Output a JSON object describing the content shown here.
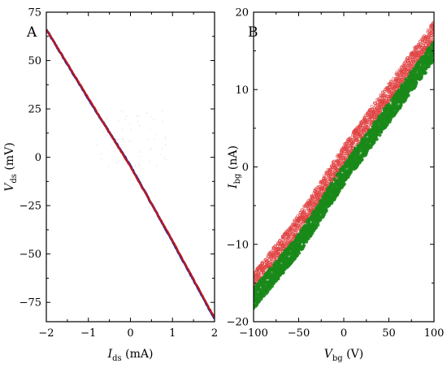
{
  "chart_data": [
    {
      "panel": "A",
      "type": "line",
      "xlabel": {
        "main": "I",
        "sub": "ds",
        "unit": " (mA)"
      },
      "ylabel": {
        "main": "V",
        "sub": "ds",
        "unit": " (mV)"
      },
      "xlim": [
        -2,
        2
      ],
      "ylim": [
        -85,
        75
      ],
      "xticks": [
        -2,
        -1,
        0,
        1,
        2
      ],
      "xtick_labels": [
        "−2",
        "−1",
        "0",
        "1",
        "2"
      ],
      "yticks": [
        75,
        50,
        25,
        0,
        -25,
        -50,
        -75
      ],
      "ytick_labels": [
        "75",
        "50",
        "25",
        "0",
        "−25",
        "−50",
        "−75"
      ],
      "grid": false,
      "series": [
        {
          "color": "#2a2a9a",
          "x": [
            -2,
            -1,
            0,
            1,
            2
          ],
          "y": [
            66,
            30.2,
            -4.5,
            -43.5,
            -83.5
          ]
        },
        {
          "color": "#c01818",
          "x": [
            -2,
            -1,
            0,
            1,
            2
          ],
          "y": [
            66,
            30.6,
            -5,
            -43,
            -83
          ]
        }
      ]
    },
    {
      "panel": "B",
      "type": "scatter",
      "xlabel": {
        "main": "V",
        "sub": "bg",
        "unit": " (V)"
      },
      "ylabel": {
        "main": "I",
        "sub": "bg",
        "unit": " (nA)"
      },
      "xlim": [
        -100,
        100
      ],
      "ylim": [
        -20,
        20
      ],
      "xticks": [
        -100,
        -50,
        0,
        50,
        100
      ],
      "xtick_labels": [
        "−100",
        "−50",
        "0",
        "50",
        "100"
      ],
      "yticks": [
        20,
        10,
        0,
        -10,
        -20
      ],
      "ytick_labels": [
        "20",
        "10",
        "0",
        "−10",
        "−20"
      ],
      "grid": false,
      "series": [
        {
          "color": "#e04040",
          "marker": "open",
          "x": [
            -100,
            -50,
            0,
            50,
            100
          ],
          "y": [
            -15,
            -7.5,
            1.5,
            9.5,
            17.5
          ]
        },
        {
          "color": "#1a8a1a",
          "marker": "filled",
          "x": [
            -100,
            -50,
            0,
            50,
            100
          ],
          "y": [
            -17,
            -10,
            -1,
            7,
            15
          ]
        }
      ]
    }
  ]
}
